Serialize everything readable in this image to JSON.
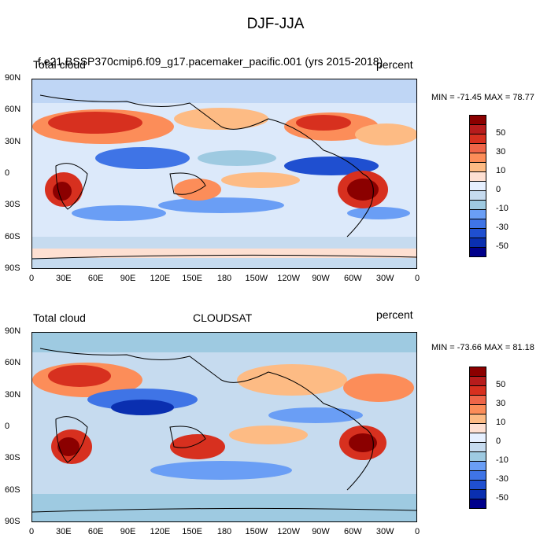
{
  "title": "DJF-JJA",
  "panels": [
    {
      "left_string": "Total cloud",
      "center_string": "f.e21.BSSP370cmip6.f09_g17.pacemaker_pacific.001 (yrs 2015-2018)",
      "right_string": "percent",
      "min_max": "MIN = -71.45 MAX =  78.77"
    },
    {
      "left_string": "Total cloud",
      "center_string": "CLOUDSAT",
      "right_string": "percent",
      "min_max": "MIN = -73.66 MAX =  81.18"
    }
  ],
  "lat_labels": [
    "90N",
    "60N",
    "30N",
    "0",
    "30S",
    "60S",
    "90S"
  ],
  "lon_labels": [
    "0",
    "30E",
    "60E",
    "90E",
    "120E",
    "150E",
    "180",
    "150W",
    "120W",
    "90W",
    "60W",
    "30W",
    "0"
  ],
  "colorbar": {
    "labels": [
      "50",
      "30",
      "10",
      "0",
      "-10",
      "-30",
      "-50"
    ],
    "colors": [
      "#8B0000",
      "#B71C1C",
      "#D7301F",
      "#EF6548",
      "#FC8D59",
      "#FDBB84",
      "#FEE0D2",
      "#E6F0FF",
      "#C6DBEF",
      "#9ECAE1",
      "#6A9EF5",
      "#3F74E6",
      "#1F4FD0",
      "#0A2FB0",
      "#00008B"
    ]
  }
}
